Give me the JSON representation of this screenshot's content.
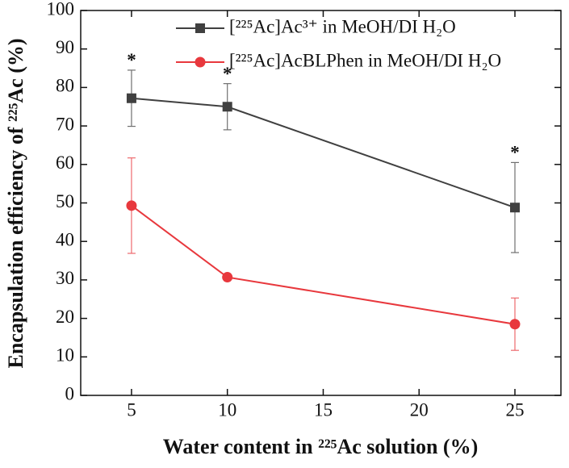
{
  "chart_data": {
    "type": "line",
    "x_label": "Water content in ²²⁵Ac solution (%)",
    "y_label": "Encapsulation efficiency of ²²⁵Ac (%)",
    "x": [
      5,
      10,
      25
    ],
    "series": [
      {
        "name": "[²²⁵Ac]Ac³⁺ in MeOH/DI H₂O",
        "color": "#404040",
        "marker": "square",
        "values": [
          77.2,
          75,
          48.8
        ],
        "errors": [
          7.3,
          6,
          11.7
        ]
      },
      {
        "name": "[²²⁵Ac]AcBLPhen in MeOH/DI H₂O",
        "color": "#e8383d",
        "marker": "circle",
        "values": [
          49.3,
          30.7,
          18.5
        ],
        "errors": [
          12.4,
          0.5,
          6.8
        ]
      }
    ],
    "annotations": [
      {
        "text": "*",
        "x": 5
      },
      {
        "text": "*",
        "x": 10
      },
      {
        "text": "*",
        "x": 25
      }
    ],
    "xlim": [
      2.35,
      27.4
    ],
    "ylim": [
      0,
      100
    ],
    "xticks": [
      5,
      10,
      15,
      20,
      25
    ],
    "yticks": [
      0,
      10,
      20,
      30,
      40,
      50,
      60,
      70,
      80,
      90,
      100
    ],
    "legend": "top-right"
  }
}
